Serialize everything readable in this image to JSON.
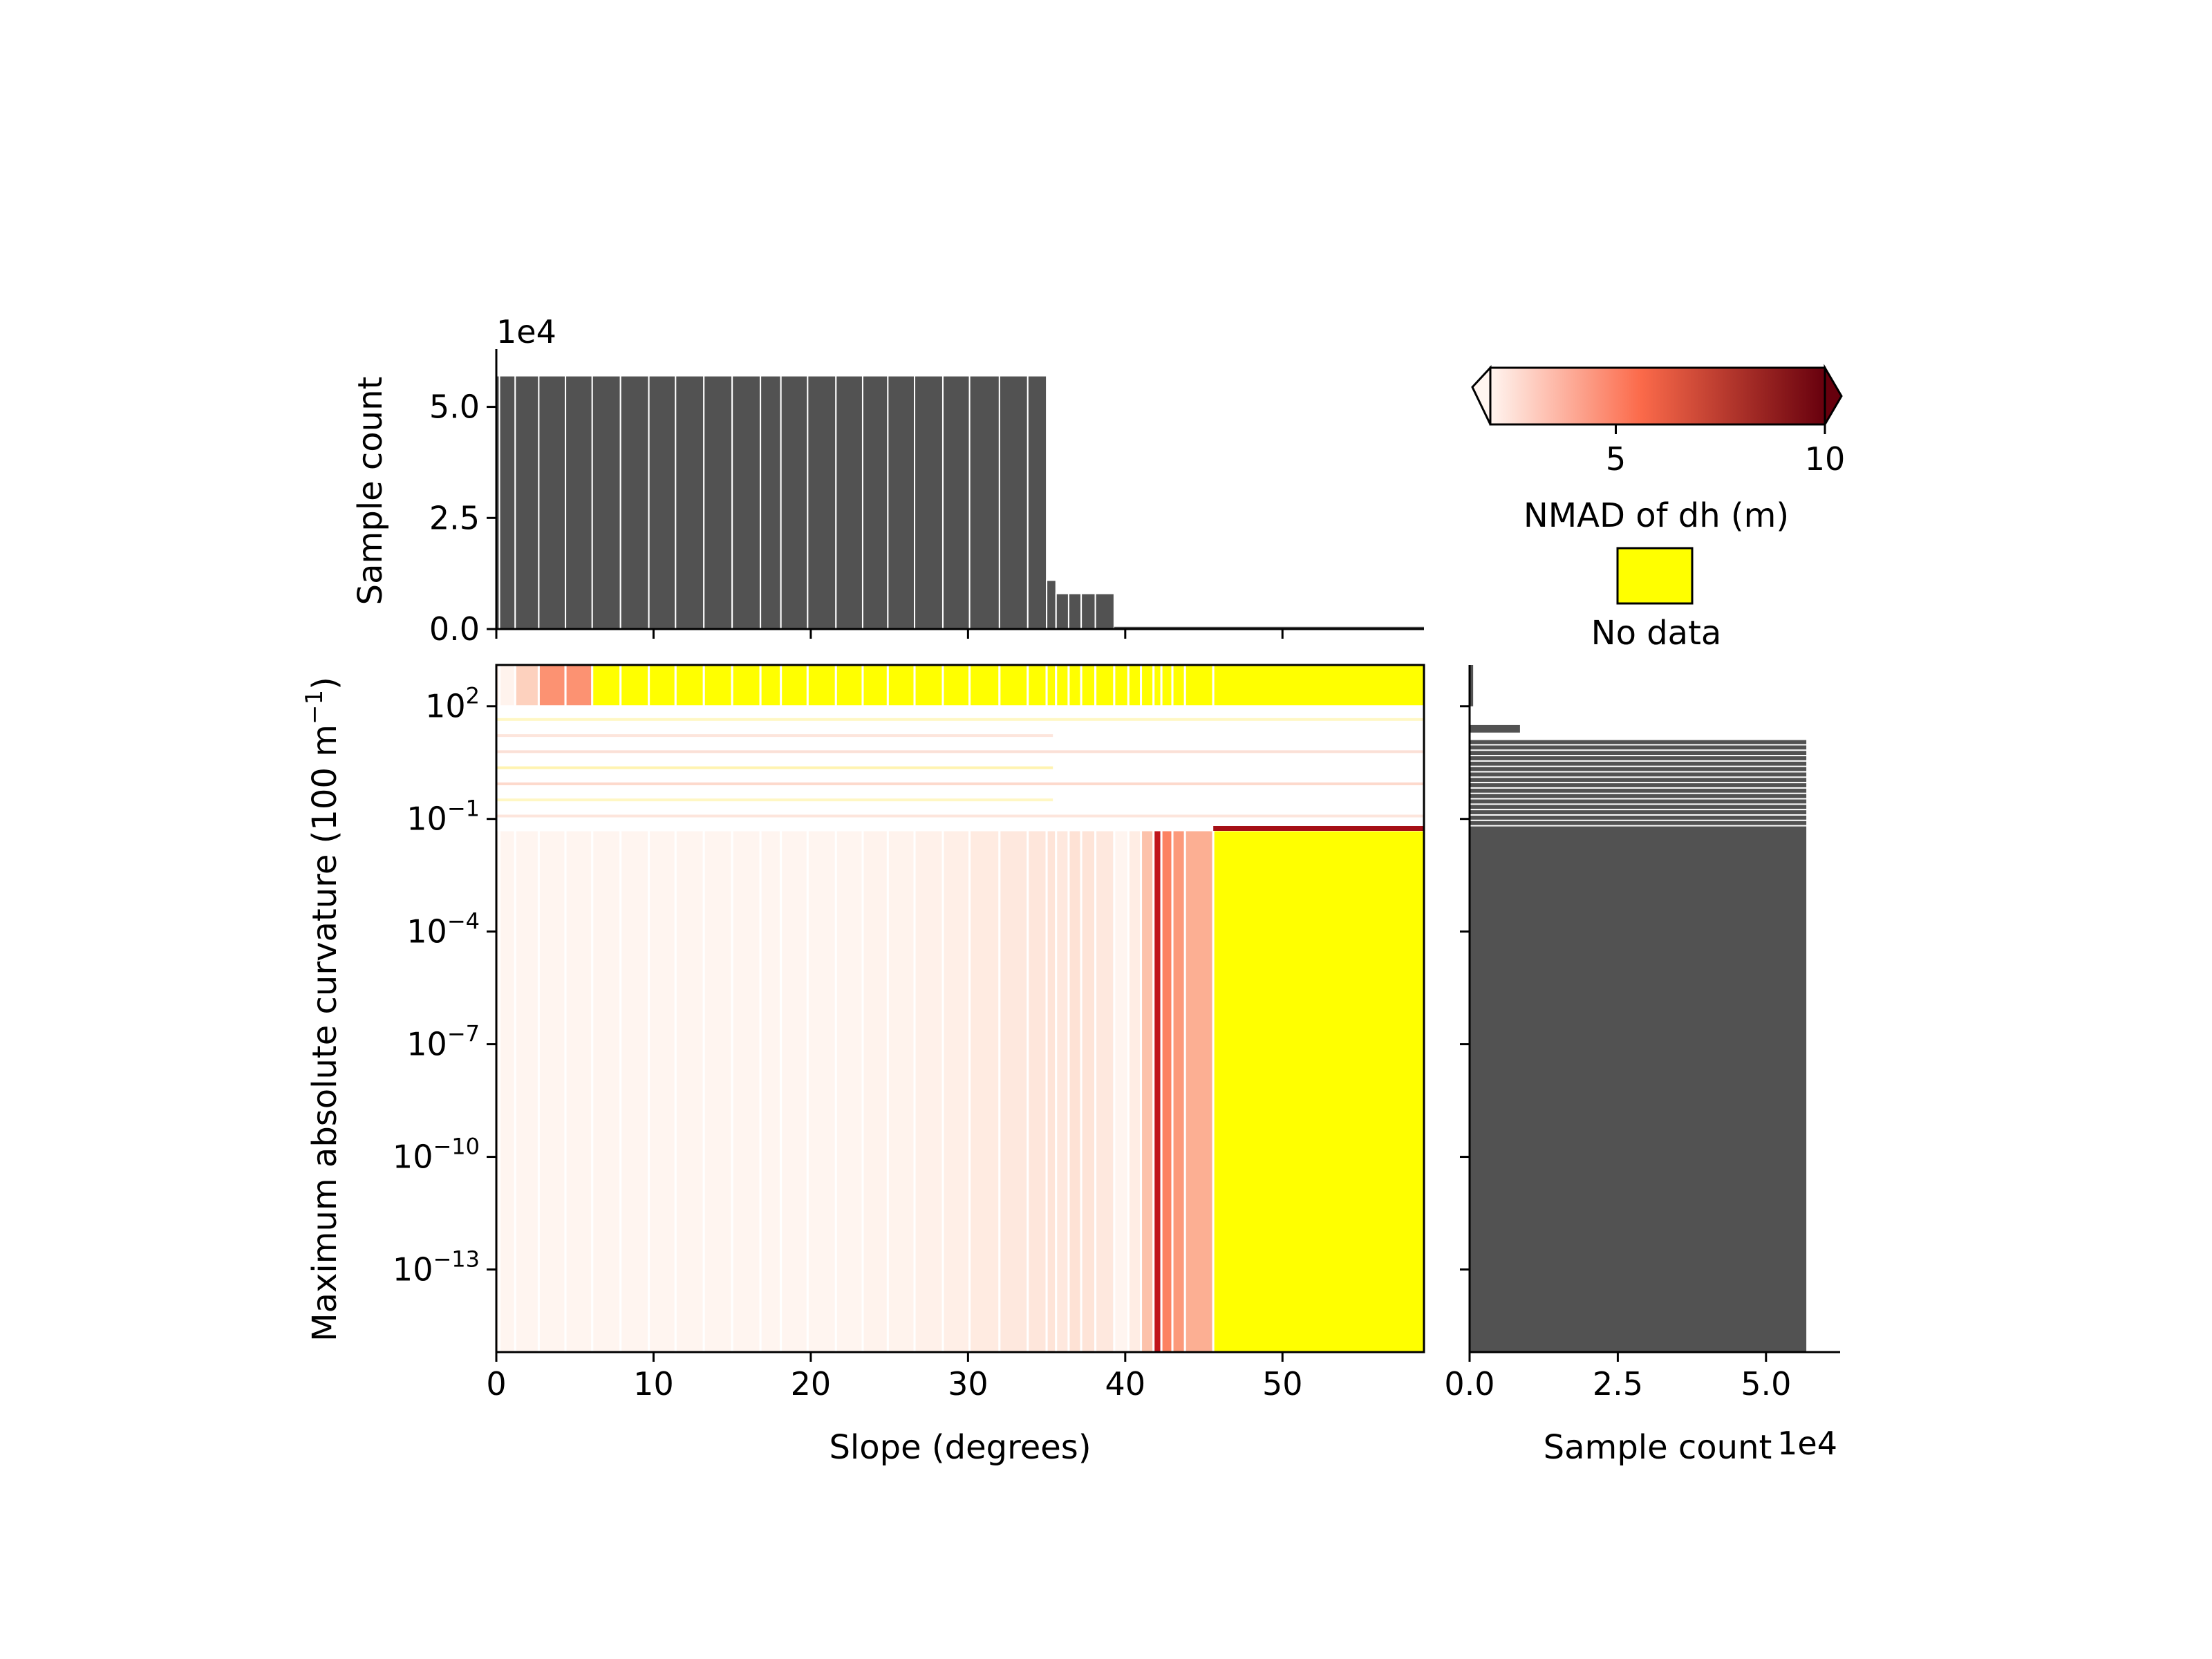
{
  "colors": {
    "bar": "#525252",
    "nodata": "#ffff00",
    "edge": "#ffffff",
    "cmap_low": "#fff5f0",
    "cmap_mid": "#fb6a4a",
    "cmap_high": "#67000d"
  },
  "chart_data": [
    {
      "id": "top-histogram",
      "type": "bar",
      "ylabel": "Sample count",
      "offset_label": "1e4",
      "xlim": [
        0,
        59
      ],
      "ylim": [
        0,
        63000
      ],
      "yticks": [
        {
          "v": 0,
          "label": "0.0"
        },
        {
          "v": 25000,
          "label": "2.5"
        },
        {
          "v": 50000,
          "label": "5.0"
        }
      ],
      "bin_edges": [
        0,
        0.2,
        1.2,
        2.7,
        4.4,
        6.1,
        7.9,
        9.7,
        11.4,
        13.2,
        15.0,
        16.8,
        18.1,
        19.8,
        21.6,
        23.3,
        24.9,
        26.6,
        28.4,
        30.1,
        32.0,
        33.8,
        35.0,
        35.6,
        36.4,
        37.2,
        38.1,
        39.3
      ],
      "bin_counts": [
        57000,
        57000,
        57000,
        57000,
        57000,
        57000,
        57000,
        57000,
        57000,
        57000,
        57000,
        57000,
        57000,
        57000,
        57000,
        57000,
        57000,
        57000,
        57000,
        57000,
        57000,
        57000,
        11000,
        8000,
        8000,
        8000,
        8000
      ],
      "tail_range": [
        39.3,
        59
      ],
      "tail_count": 500
    },
    {
      "id": "heatmap",
      "type": "heatmap",
      "xlabel": "Slope (degrees)",
      "ylabel_main": "Maximum absolute curvature (100 m",
      "ylabel_exp": "−1",
      "ylabel_end": ")",
      "xlim": [
        0,
        59
      ],
      "ylim_log10": [
        -15.2,
        3.1
      ],
      "yscale": "log",
      "xticks": [
        0,
        10,
        20,
        30,
        40,
        50
      ],
      "yticks": [
        {
          "exp": 2,
          "label": "2"
        },
        {
          "exp": -1,
          "label": "−1"
        },
        {
          "exp": -4,
          "label": "−4"
        },
        {
          "exp": -7,
          "label": "−7"
        },
        {
          "exp": -10,
          "label": "−10"
        },
        {
          "exp": -13,
          "label": "−13"
        }
      ],
      "ytick_base": "10",
      "x_bins": [
        {
          "x0": 0,
          "x1": 0.2,
          "low": 1.6,
          "high": 2.4
        },
        {
          "x0": 0.2,
          "x1": 1.2,
          "low": 1.4,
          "high": 2.1
        },
        {
          "x0": 1.2,
          "x1": 2.7,
          "low": 1.5,
          "high": 3.4
        },
        {
          "x0": 2.7,
          "x1": 4.4,
          "low": 1.6,
          "high": 5.0
        },
        {
          "x0": 4.4,
          "x1": 6.1,
          "low": 1.7,
          "high": 5.0
        },
        {
          "x0": 6.1,
          "x1": 7.9,
          "low": 1.7,
          "high": null
        },
        {
          "x0": 7.9,
          "x1": 9.7,
          "low": 1.6,
          "high": null
        },
        {
          "x0": 9.7,
          "x1": 11.4,
          "low": 1.8,
          "high": null
        },
        {
          "x0": 11.4,
          "x1": 13.2,
          "low": 1.7,
          "high": null
        },
        {
          "x0": 13.2,
          "x1": 15.0,
          "low": 1.6,
          "high": null
        },
        {
          "x0": 15.0,
          "x1": 16.8,
          "low": 1.7,
          "high": null
        },
        {
          "x0": 16.8,
          "x1": 18.1,
          "low": 1.9,
          "high": null
        },
        {
          "x0": 18.1,
          "x1": 19.8,
          "low": 1.8,
          "high": null
        },
        {
          "x0": 19.8,
          "x1": 21.6,
          "low": 1.9,
          "high": null
        },
        {
          "x0": 21.6,
          "x1": 23.3,
          "low": 2.0,
          "high": null
        },
        {
          "x0": 23.3,
          "x1": 24.9,
          "low": 2.1,
          "high": null
        },
        {
          "x0": 24.9,
          "x1": 26.6,
          "low": 2.1,
          "high": null
        },
        {
          "x0": 26.6,
          "x1": 28.4,
          "low": 2.2,
          "high": null
        },
        {
          "x0": 28.4,
          "x1": 30.1,
          "low": 2.3,
          "high": null
        },
        {
          "x0": 30.1,
          "x1": 32.0,
          "low": 2.5,
          "high": null
        },
        {
          "x0": 32.0,
          "x1": 33.8,
          "low": 2.6,
          "high": null
        },
        {
          "x0": 33.8,
          "x1": 35.0,
          "low": 2.7,
          "high": null
        },
        {
          "x0": 35.0,
          "x1": 35.6,
          "low": 2.8,
          "high": null
        },
        {
          "x0": 35.6,
          "x1": 36.4,
          "low": 2.6,
          "high": null
        },
        {
          "x0": 36.4,
          "x1": 37.2,
          "low": 2.9,
          "high": null
        },
        {
          "x0": 37.2,
          "x1": 38.1,
          "low": 2.8,
          "high": null
        },
        {
          "x0": 38.1,
          "x1": 39.3,
          "low": 2.6,
          "high": null
        },
        {
          "x0": 39.3,
          "x1": 40.2,
          "low": 1.3,
          "high": null
        },
        {
          "x0": 40.2,
          "x1": 41.0,
          "low": 2.4,
          "high": null
        },
        {
          "x0": 41.0,
          "x1": 41.8,
          "low": 3.8,
          "high": null
        },
        {
          "x0": 41.8,
          "x1": 42.3,
          "low": 8.3,
          "high": null
        },
        {
          "x0": 42.3,
          "x1": 43.0,
          "low": 5.4,
          "high": null
        },
        {
          "x0": 43.0,
          "x1": 43.8,
          "low": 4.8,
          "high": null
        },
        {
          "x0": 43.8,
          "x1": 45.6,
          "low": 4.3,
          "high": null
        },
        {
          "x0": 45.6,
          "x1": 59,
          "low": null,
          "high": null
        }
      ],
      "band_split_log10": -1.3,
      "middle_band_log10": [
        -1.1,
        1.9
      ],
      "high_band_start_log10": 2.0
    },
    {
      "id": "right-histogram",
      "type": "bar",
      "orientation": "horizontal",
      "xlabel": "Sample count",
      "offset_label": "1e4",
      "xlim": [
        0,
        62500
      ],
      "xticks": [
        {
          "v": 0,
          "label": "0.0"
        },
        {
          "v": 25000,
          "label": "2.5"
        },
        {
          "v": 50000,
          "label": "5.0"
        }
      ],
      "main_bar": {
        "count": 56800,
        "y0_log10": -15.2,
        "y1_log10": -1.2
      },
      "fringe_count": 56800,
      "fringe_range_log10": [
        -1.2,
        1.1
      ],
      "small_bars": [
        {
          "count": 8500,
          "y0_log10": 1.3,
          "y1_log10": 1.5
        },
        {
          "count": 600,
          "y0_log10": 2.0,
          "y1_log10": 3.1
        }
      ]
    }
  ],
  "colorbar": {
    "label": "NMAD of dh (m)",
    "vmin": 2,
    "vmax": 10,
    "ticks": [
      {
        "v": 5,
        "label": "5"
      },
      {
        "v": 10,
        "label": "10"
      }
    ],
    "extend": "both"
  },
  "nodata_legend": {
    "label": "No data"
  }
}
